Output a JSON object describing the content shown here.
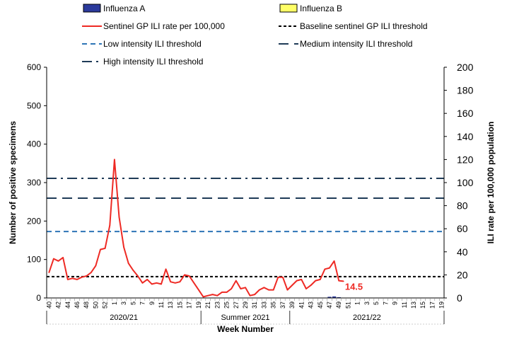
{
  "chart_data": {
    "type": "line",
    "legend": {
      "placement": "top",
      "items": [
        {
          "label": "Influenza A",
          "kind": "bar",
          "color": "#2b3a9c"
        },
        {
          "label": "Influenza B",
          "kind": "bar",
          "color": "#ffff66"
        },
        {
          "label": "Sentinel GP ILI rate per 100,000",
          "kind": "solid",
          "color": "#ee2a24"
        },
        {
          "label": "Baseline sentinel GP ILI threshold",
          "kind": "dotted",
          "color": "#000000"
        },
        {
          "label": "Low intensity ILI threshold",
          "kind": "dash",
          "color": "#2e75b6"
        },
        {
          "label": "Medium intensity ILI threshold",
          "kind": "longdash",
          "color": "#1f3b57"
        },
        {
          "label": "High intensity ILI threshold",
          "kind": "dashdot",
          "color": "#1f3b57"
        }
      ]
    },
    "xlabel": "Week Number",
    "ylabel_left": "Number of positive specimens",
    "ylabel_right": "ILI rate per 100,000 population",
    "y_left": {
      "min": 0,
      "max": 600,
      "ticks": [
        "0",
        "100",
        "200",
        "300",
        "400",
        "500",
        "600"
      ]
    },
    "y_right": {
      "min": 0,
      "max": 200,
      "ticks": [
        "0",
        "20",
        "40",
        "60",
        "80",
        "100",
        "120",
        "140",
        "160",
        "180",
        "200"
      ]
    },
    "x_tick_labels": [
      "40",
      "42",
      "44",
      "46",
      "48",
      "50",
      "52",
      "1",
      "3",
      "5",
      "7",
      "9",
      "11",
      "13",
      "15",
      "17",
      "19",
      "21",
      "23",
      "25",
      "27",
      "29",
      "31",
      "33",
      "35",
      "37",
      "39",
      "41",
      "43",
      "45",
      "47",
      "49",
      "51",
      "1",
      "3",
      "5",
      "7",
      "9",
      "11",
      "13",
      "15",
      "17",
      "19"
    ],
    "seasons": [
      {
        "label": "2020/21",
        "start": 0,
        "end": 33
      },
      {
        "label": "Summer 2021",
        "start": 33,
        "end": 52
      },
      {
        "label": "2021/22",
        "start": 52,
        "end": 85
      }
    ],
    "thresholds": {
      "baseline": 18.5,
      "low": 57.6,
      "medium": 86.5,
      "high": 103.7
    },
    "series": [
      {
        "name": "Sentinel GP ILI rate per 100,000",
        "color": "#ee2a24",
        "values": [
          22,
          34,
          32,
          35,
          16,
          17,
          16,
          18,
          19,
          22,
          28,
          42,
          43,
          63,
          120,
          70,
          44,
          30,
          24,
          19,
          13,
          16,
          12,
          13,
          12,
          25,
          14,
          13,
          14,
          20,
          19,
          13,
          7,
          1,
          2,
          3,
          2,
          5,
          5,
          8,
          15,
          8,
          9,
          2,
          3,
          7,
          9,
          7,
          7,
          18,
          18,
          7,
          11,
          15,
          16,
          8,
          11,
          15,
          16,
          25,
          26,
          32,
          15,
          14.5
        ],
        "end_label": "14.5"
      },
      {
        "name": "Influenza A",
        "color": "#2b3a9c",
        "values": [
          0,
          0,
          0,
          0,
          0,
          0,
          0,
          0,
          0,
          0,
          0,
          0,
          0,
          0,
          0,
          0,
          0,
          0,
          0,
          0,
          0,
          0,
          0,
          0,
          0,
          0,
          0,
          0,
          0,
          0,
          0,
          0,
          0,
          0,
          0,
          0,
          0,
          0,
          0,
          0,
          0,
          0,
          0,
          0,
          0,
          0,
          0,
          0,
          0,
          0,
          0,
          0,
          0,
          0,
          0,
          0,
          0,
          0,
          0,
          0,
          3,
          4,
          2,
          0
        ]
      },
      {
        "name": "Influenza B",
        "color": "#ffff66",
        "values": []
      }
    ]
  }
}
